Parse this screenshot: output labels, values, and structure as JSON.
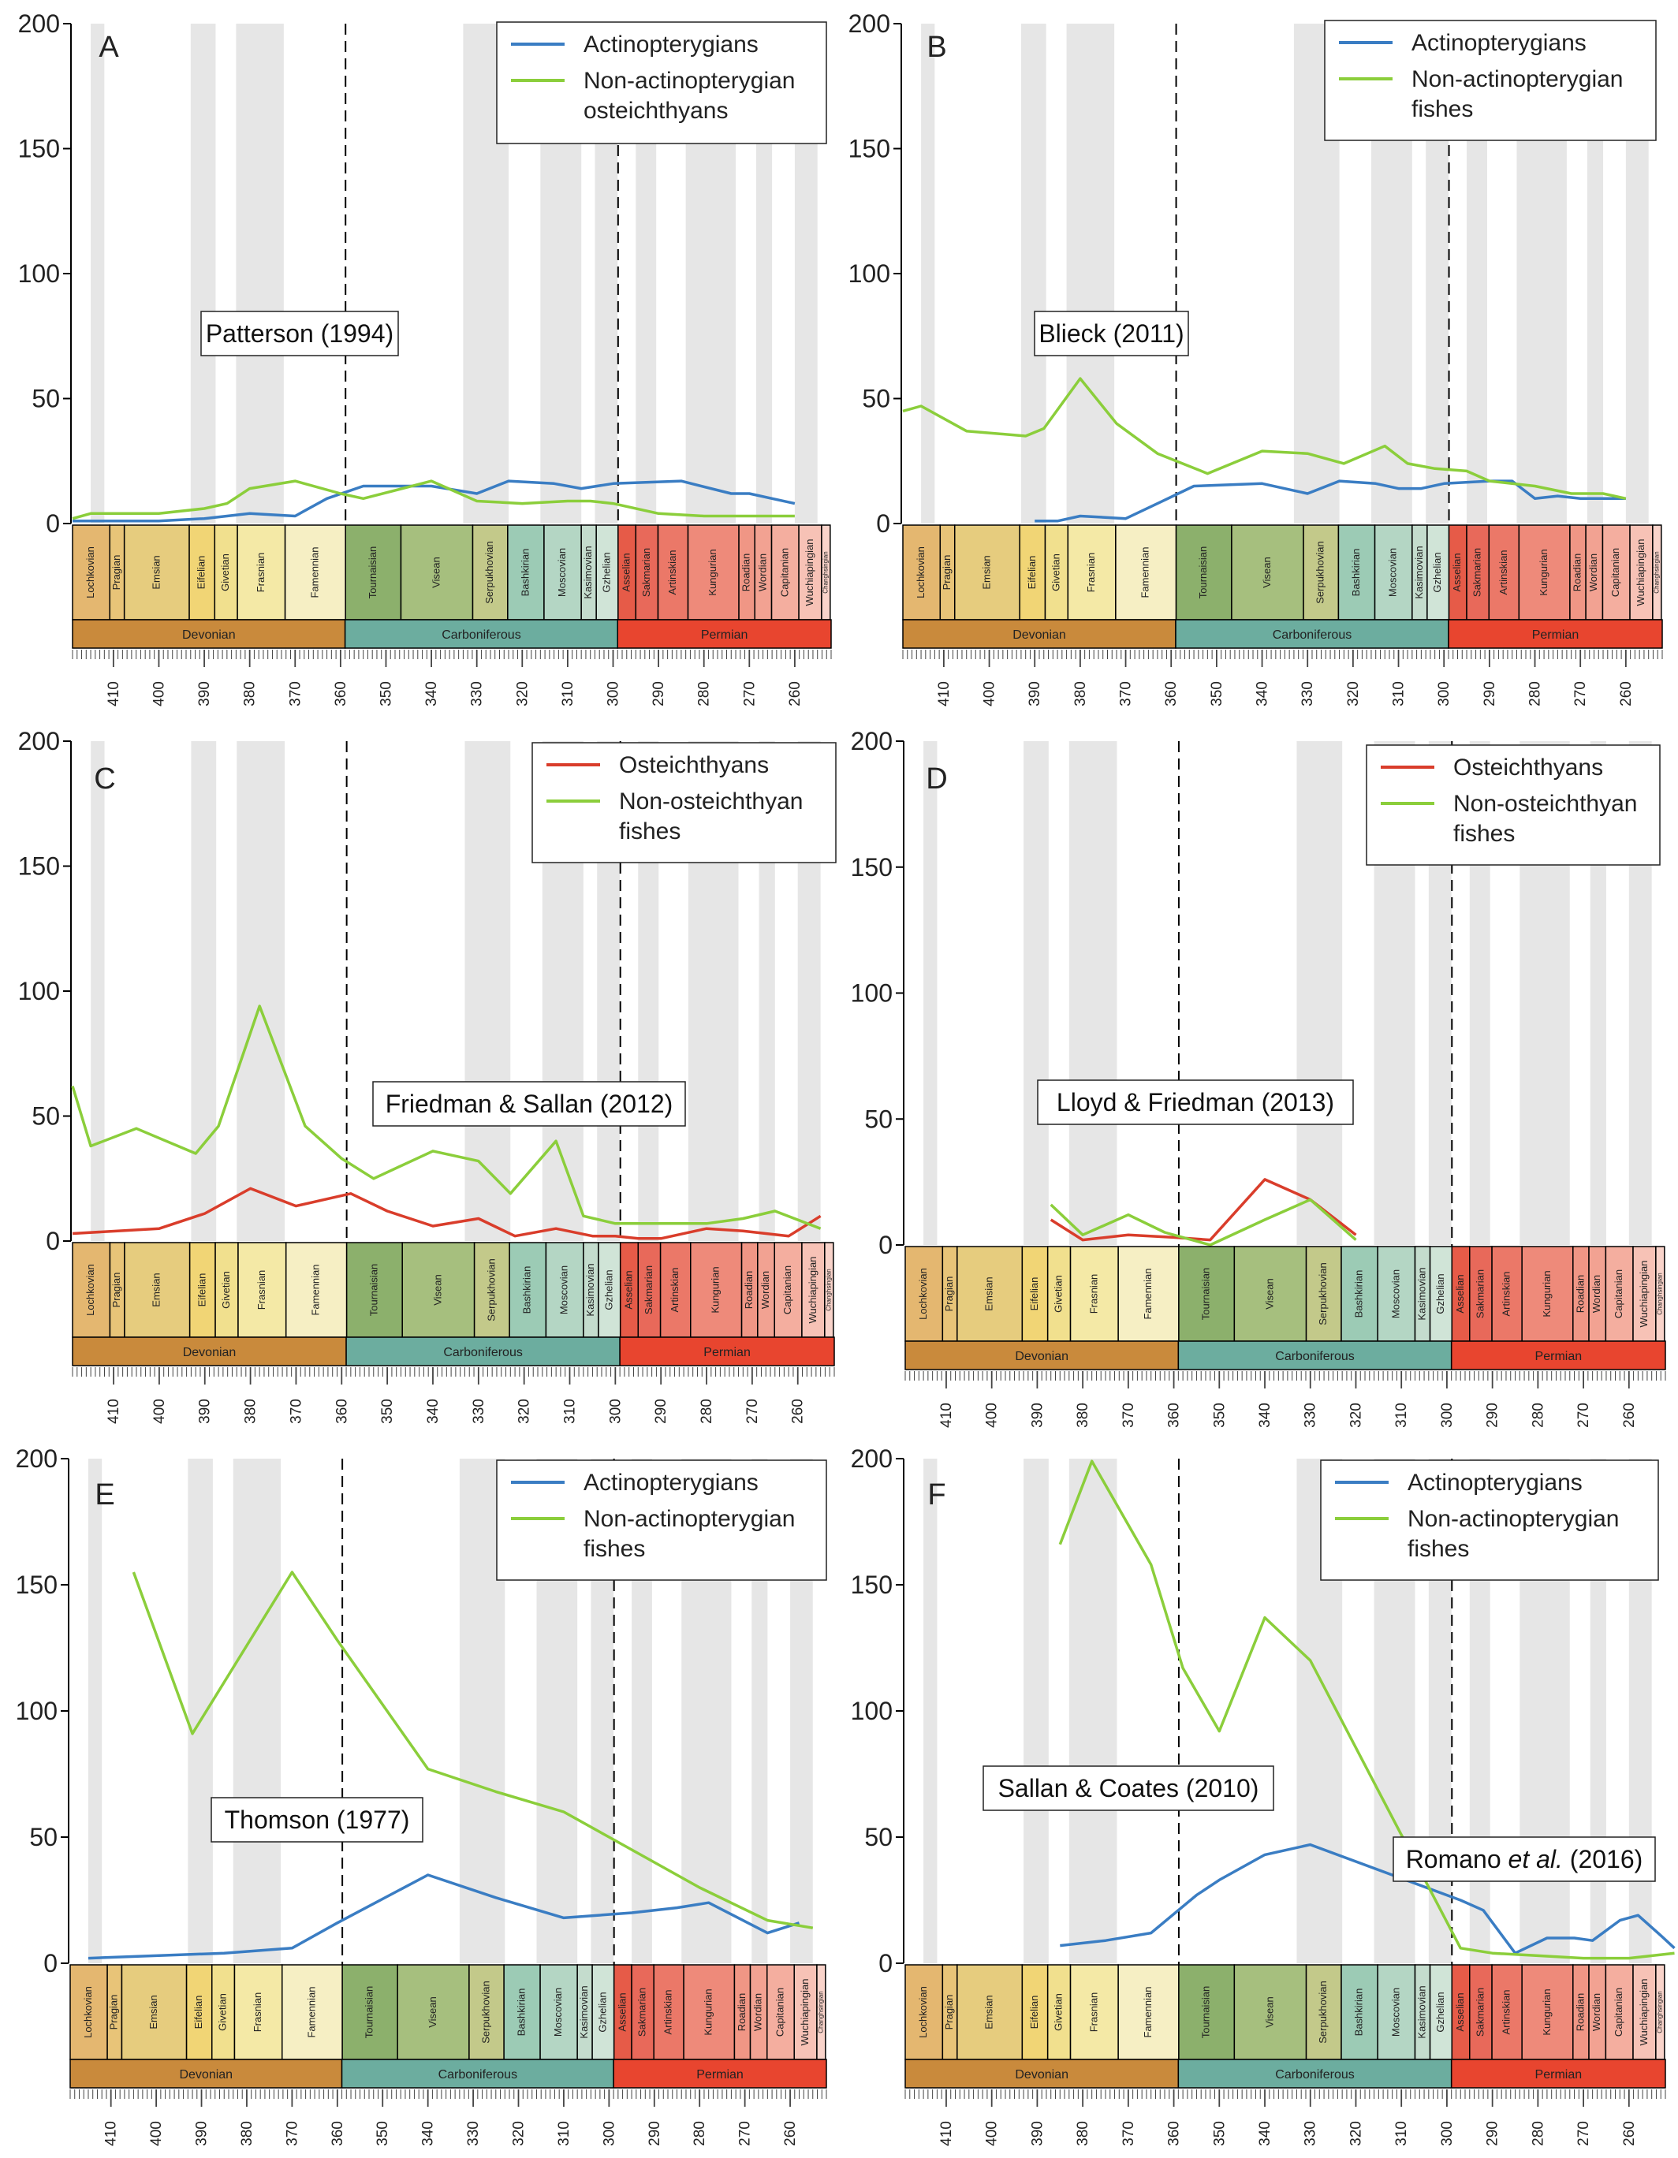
{
  "chart_data": [
    {
      "panel": "A",
      "type": "line",
      "ylim": [
        0,
        200
      ],
      "yticks": [
        0,
        50,
        100,
        150,
        200
      ],
      "annotation": "Patterson (1994)",
      "series": [
        {
          "name": "Actinopterygians",
          "color": "#3a7dc3",
          "x": [
            419,
            410,
            400,
            390,
            385,
            380,
            370,
            363,
            355,
            340,
            330,
            323,
            313,
            307,
            300,
            285,
            274,
            270,
            265,
            260
          ],
          "y": [
            1,
            1,
            1,
            2,
            3,
            4,
            3,
            10,
            15,
            15,
            12,
            17,
            16,
            14,
            16,
            17,
            12,
            12,
            10,
            8
          ]
        },
        {
          "name": "Non-actinopterygian osteichthyans",
          "color": "#8bce3b",
          "x": [
            419,
            415,
            400,
            390,
            385,
            380,
            370,
            360,
            355,
            340,
            330,
            320,
            310,
            305,
            300,
            290,
            280,
            270,
            260
          ],
          "y": [
            2,
            4,
            4,
            6,
            8,
            14,
            17,
            12,
            10,
            17,
            9,
            8,
            9,
            9,
            8,
            4,
            3,
            3,
            3
          ]
        }
      ]
    },
    {
      "panel": "B",
      "type": "line",
      "ylim": [
        0,
        200
      ],
      "yticks": [
        0,
        50,
        100,
        150,
        200
      ],
      "annotation": "Blieck (2011)",
      "series": [
        {
          "name": "Actinopterygians",
          "color": "#3a7dc3",
          "x": [
            390,
            385,
            380,
            370,
            363,
            355,
            340,
            330,
            323,
            315,
            310,
            305,
            300,
            290,
            285,
            280,
            275,
            270,
            265,
            260
          ],
          "y": [
            1,
            1,
            3,
            2,
            8,
            15,
            16,
            12,
            17,
            16,
            14,
            14,
            16,
            17,
            17,
            10,
            11,
            10,
            10,
            10
          ]
        },
        {
          "name": "Non-actinopterygian fishes",
          "color": "#8bce3b",
          "x": [
            419,
            415,
            405,
            392,
            388,
            380,
            372,
            363,
            352,
            340,
            330,
            322,
            313,
            308,
            302,
            295,
            290,
            280,
            272,
            265,
            260
          ],
          "y": [
            45,
            47,
            37,
            35,
            38,
            58,
            40,
            28,
            20,
            29,
            28,
            24,
            31,
            24,
            22,
            21,
            17,
            15,
            12,
            12,
            10
          ]
        }
      ]
    },
    {
      "panel": "C",
      "type": "line",
      "ylim": [
        0,
        200
      ],
      "yticks": [
        0,
        50,
        100,
        150,
        200
      ],
      "annotation": "Friedman & Sallan (2012)",
      "series": [
        {
          "name": "Osteichthyans",
          "color": "#d93d2b",
          "x": [
            419,
            400,
            390,
            380,
            370,
            358,
            350,
            340,
            330,
            322,
            313,
            305,
            300,
            295,
            290,
            280,
            272,
            262,
            255
          ],
          "y": [
            3,
            5,
            11,
            21,
            14,
            19,
            12,
            6,
            9,
            2,
            5,
            2,
            2,
            1,
            1,
            5,
            4,
            2,
            10
          ]
        },
        {
          "name": "Non-osteichthyan fishes",
          "color": "#8bce3b",
          "x": [
            419,
            415,
            405,
            392,
            387,
            378,
            368,
            360,
            353,
            340,
            330,
            323,
            313,
            307,
            300,
            290,
            280,
            272,
            265,
            255
          ],
          "y": [
            62,
            38,
            45,
            35,
            46,
            94,
            46,
            33,
            25,
            36,
            32,
            19,
            40,
            10,
            7,
            7,
            7,
            9,
            12,
            5
          ]
        }
      ]
    },
    {
      "panel": "D",
      "type": "line",
      "ylim": [
        0,
        200
      ],
      "yticks": [
        0,
        50,
        100,
        150,
        200
      ],
      "annotation": "Lloyd & Friedman (2013)",
      "series": [
        {
          "name": "Osteichthyans",
          "color": "#d93d2b",
          "x": [
            387,
            380,
            370,
            360,
            352,
            340,
            330,
            320
          ],
          "y": [
            10,
            2,
            4,
            3,
            2,
            26,
            18,
            4
          ]
        },
        {
          "name": "Non-osteichthyan fishes",
          "color": "#8bce3b",
          "x": [
            387,
            380,
            370,
            362,
            352,
            340,
            330,
            320
          ],
          "y": [
            16,
            4,
            12,
            5,
            0,
            10,
            18,
            2
          ]
        }
      ]
    },
    {
      "panel": "E",
      "type": "line",
      "ylim": [
        0,
        200
      ],
      "yticks": [
        0,
        50,
        100,
        150,
        200
      ],
      "annotation": "Thomson (1977)",
      "series": [
        {
          "name": "Actinopterygians",
          "color": "#3a7dc3",
          "x": [
            415,
            400,
            385,
            370,
            360,
            340,
            325,
            310,
            295,
            285,
            278,
            265,
            258
          ],
          "y": [
            2,
            3,
            4,
            6,
            16,
            35,
            26,
            18,
            20,
            22,
            24,
            12,
            16
          ]
        },
        {
          "name": "Non-actinopterygian fishes",
          "color": "#8bce3b",
          "x": [
            405,
            392,
            370,
            360,
            340,
            325,
            310,
            300,
            290,
            280,
            265,
            255
          ],
          "y": [
            155,
            91,
            155,
            128,
            77,
            68,
            60,
            50,
            40,
            30,
            17,
            14
          ]
        }
      ]
    },
    {
      "panel": "F",
      "type": "line",
      "ylim": [
        0,
        200
      ],
      "yticks": [
        0,
        50,
        100,
        150,
        200
      ],
      "annotation": "Sallan & Coates (2010)",
      "annotation2_parts": [
        "Romano ",
        "et al.",
        " (2016)"
      ],
      "series": [
        {
          "name": "Actinopterygians",
          "color": "#3a7dc3",
          "x": [
            385,
            375,
            365,
            355,
            350,
            340,
            330,
            297,
            292,
            285,
            278,
            272,
            268,
            262,
            258,
            253,
            250
          ],
          "y": [
            7,
            9,
            12,
            27,
            33,
            43,
            47,
            25,
            21,
            4,
            10,
            10,
            9,
            17,
            19,
            11,
            6
          ]
        },
        {
          "name": "Non-actinopterygian fishes",
          "color": "#8bce3b",
          "x": [
            385,
            378,
            365,
            358,
            350,
            340,
            330,
            297,
            290,
            280,
            270,
            260,
            250
          ],
          "y": [
            166,
            199,
            158,
            117,
            92,
            137,
            120,
            6,
            4,
            3,
            2,
            2,
            4
          ]
        }
      ]
    }
  ],
  "timescale": {
    "ticks": [
      410,
      400,
      390,
      380,
      370,
      360,
      350,
      340,
      330,
      320,
      310,
      300,
      290,
      280,
      270,
      260
    ],
    "periods": [
      {
        "name": "Devonian",
        "start": 419,
        "end": 359,
        "color": "#c98a3c"
      },
      {
        "name": "Carboniferous",
        "start": 359,
        "end": 299,
        "color": "#6cad9f"
      },
      {
        "name": "Permian",
        "start": 299,
        "end": 252,
        "color": "#e8452f"
      }
    ],
    "stages": [
      {
        "name": "Lochkovian",
        "start": 419,
        "end": 410.8,
        "color": "#e4b770"
      },
      {
        "name": "Pragian",
        "start": 410.8,
        "end": 407.6,
        "color": "#e8c478"
      },
      {
        "name": "Emsian",
        "start": 407.6,
        "end": 393.3,
        "color": "#e6cc7e"
      },
      {
        "name": "Eifelian",
        "start": 393.3,
        "end": 387.7,
        "color": "#f1d575"
      },
      {
        "name": "Givetian",
        "start": 387.7,
        "end": 382.7,
        "color": "#f1e08e"
      },
      {
        "name": "Frasnian",
        "start": 382.7,
        "end": 372.2,
        "color": "#f4e9a6"
      },
      {
        "name": "Famennian",
        "start": 372.2,
        "end": 358.9,
        "color": "#f6efc4"
      },
      {
        "name": "Tournaisian",
        "start": 358.9,
        "end": 346.7,
        "color": "#8cb06c"
      },
      {
        "name": "Visean",
        "start": 346.7,
        "end": 330.9,
        "color": "#a6bf7e"
      },
      {
        "name": "Serpukhovian",
        "start": 330.9,
        "end": 323.2,
        "color": "#c3c98a"
      },
      {
        "name": "Bashkirian",
        "start": 323.2,
        "end": 315.2,
        "color": "#9ccbb5"
      },
      {
        "name": "Moscovian",
        "start": 315.2,
        "end": 307,
        "color": "#b4d6c4"
      },
      {
        "name": "Kasimovian",
        "start": 307,
        "end": 303.7,
        "color": "#c4dccd"
      },
      {
        "name": "Gzhelian",
        "start": 303.7,
        "end": 298.9,
        "color": "#d0e4d7"
      },
      {
        "name": "Asselian",
        "start": 298.9,
        "end": 295,
        "color": "#e65b48"
      },
      {
        "name": "Sakmarian",
        "start": 295,
        "end": 290.1,
        "color": "#e8695a"
      },
      {
        "name": "Artinskian",
        "start": 290.1,
        "end": 283.5,
        "color": "#eb7868"
      },
      {
        "name": "Kungurian",
        "start": 283.5,
        "end": 272.3,
        "color": "#ee8a7a"
      },
      {
        "name": "Roadian",
        "start": 272.3,
        "end": 268.8,
        "color": "#f09685"
      },
      {
        "name": "Wordian",
        "start": 268.8,
        "end": 265.1,
        "color": "#f2a292"
      },
      {
        "name": "Capitanian",
        "start": 265.1,
        "end": 259.1,
        "color": "#f4ae9f"
      },
      {
        "name": "Wuchiapingian",
        "start": 259.1,
        "end": 254.1,
        "color": "#f7c2b6"
      },
      {
        "name": "Changhsingian",
        "start": 254.1,
        "end": 252.2,
        "color": "#f9d3ca"
      }
    ],
    "boundaries": [
      358.9,
      298.9
    ]
  }
}
